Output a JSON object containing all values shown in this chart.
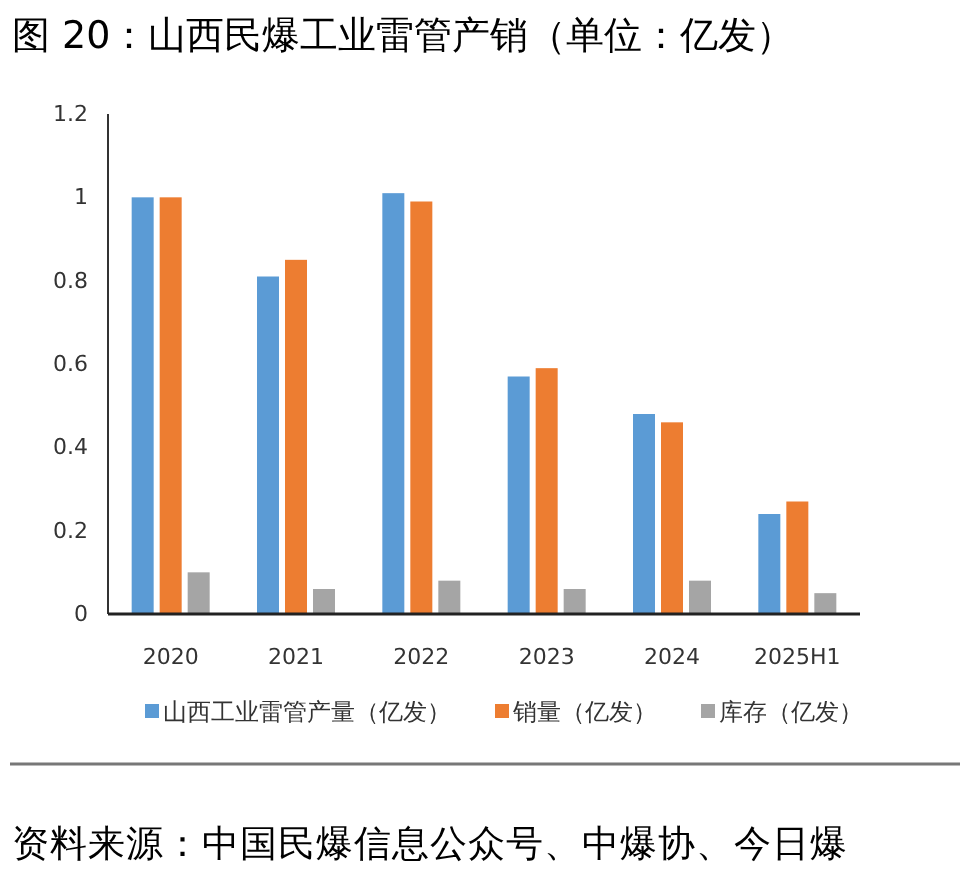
{
  "chart_data": {
    "type": "bar",
    "title": "图 20：山西民爆工业雷管产销（单位：亿发）",
    "categories": [
      "2020",
      "2021",
      "2022",
      "2023",
      "2024",
      "2025H1"
    ],
    "series": [
      {
        "name": "山西工业雷管产量（亿发）",
        "color": "#5b9bd5",
        "values": [
          1.0,
          0.81,
          1.01,
          0.57,
          0.48,
          0.24
        ]
      },
      {
        "name": "销量（亿发）",
        "color": "#ed7d31",
        "values": [
          1.0,
          0.85,
          0.99,
          0.59,
          0.46,
          0.27
        ]
      },
      {
        "name": "库存（亿发）",
        "color": "#a5a5a5",
        "values": [
          0.1,
          0.06,
          0.08,
          0.06,
          0.08,
          0.05
        ]
      }
    ],
    "ylim": [
      0,
      1.2
    ],
    "yticks": [
      0,
      0.2,
      0.4,
      0.6,
      0.8,
      1,
      1.2
    ],
    "grid": false,
    "legend": "bottom",
    "annotations": [
      "资料来源：中国民爆信息公众号、中爆协、今日爆"
    ]
  }
}
